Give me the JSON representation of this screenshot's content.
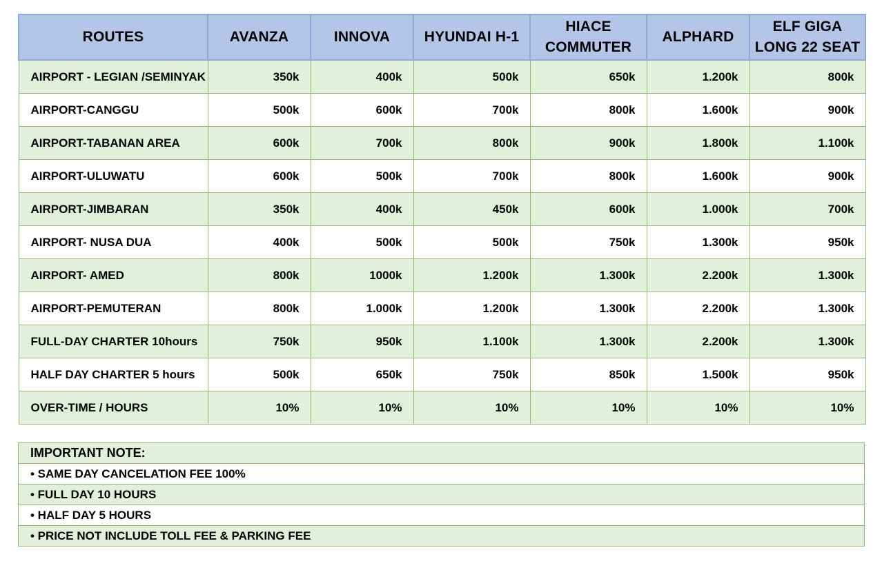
{
  "price_table": {
    "headers": [
      "ROUTES",
      "AVANZA",
      "INNOVA",
      "HYUNDAI H-1",
      "HIACE\nCOMMUTER",
      "ALPHARD",
      "ELF GIGA\nLONG 22 SEAT"
    ],
    "rows": [
      {
        "route": "AIRPORT - LEGIAN /SEMINYAK",
        "prices": [
          "350k",
          "400k",
          "500k",
          "650k",
          "1.200k",
          "800k"
        ]
      },
      {
        "route": "AIRPORT-CANGGU",
        "prices": [
          "500k",
          "600k",
          "700k",
          "800k",
          "1.600k",
          "900k"
        ]
      },
      {
        "route": "AIRPORT-TABANAN AREA",
        "prices": [
          "600k",
          "700k",
          "800k",
          "900k",
          "1.800k",
          "1.100k"
        ]
      },
      {
        "route": "AIRPORT-ULUWATU",
        "prices": [
          "600k",
          "500k",
          "700k",
          "800k",
          "1.600k",
          "900k"
        ]
      },
      {
        "route": "AIRPORT-JIMBARAN",
        "prices": [
          "350k",
          "400k",
          "450k",
          "600k",
          "1.000k",
          "700k"
        ]
      },
      {
        "route": "AIRPORT- NUSA DUA",
        "prices": [
          "400k",
          "500k",
          "500k",
          "750k",
          "1.300k",
          "950k"
        ]
      },
      {
        "route": "AIRPORT- AMED",
        "prices": [
          "800k",
          "1000k",
          "1.200k",
          "1.300k",
          "2.200k",
          "1.300k"
        ]
      },
      {
        "route": "AIRPORT-PEMUTERAN",
        "prices": [
          "800k",
          "1.000k",
          "1.200k",
          "1.300k",
          "2.200k",
          "1.300k"
        ]
      },
      {
        "route": "FULL-DAY CHARTER 10hours",
        "prices": [
          "750k",
          "950k",
          "1.100k",
          "1.300k",
          "2.200k",
          "1.300k"
        ]
      },
      {
        "route": "HALF DAY CHARTER 5 hours",
        "prices": [
          "500k",
          "650k",
          "750k",
          "850k",
          "1.500k",
          "950k"
        ]
      },
      {
        "route": "OVER-TIME / HOURS",
        "prices": [
          "10%",
          "10%",
          "10%",
          "10%",
          "10%",
          "10%"
        ]
      }
    ]
  },
  "notes": {
    "title": "IMPORTANT NOTE:",
    "items": [
      "• SAME DAY CANCELATION FEE 100%",
      "• FULL DAY 10 HOURS",
      "• HALF DAY 5 HOURS",
      "• PRICE NOT INCLUDE TOLL FEE & PARKING FEE"
    ]
  },
  "colors": {
    "header_fill": "#b4c6e7",
    "header_border": "#8eaadb",
    "row_shaded": "#e2efda",
    "row_plain": "#ffffff",
    "grid_border": "#8fbc70"
  }
}
